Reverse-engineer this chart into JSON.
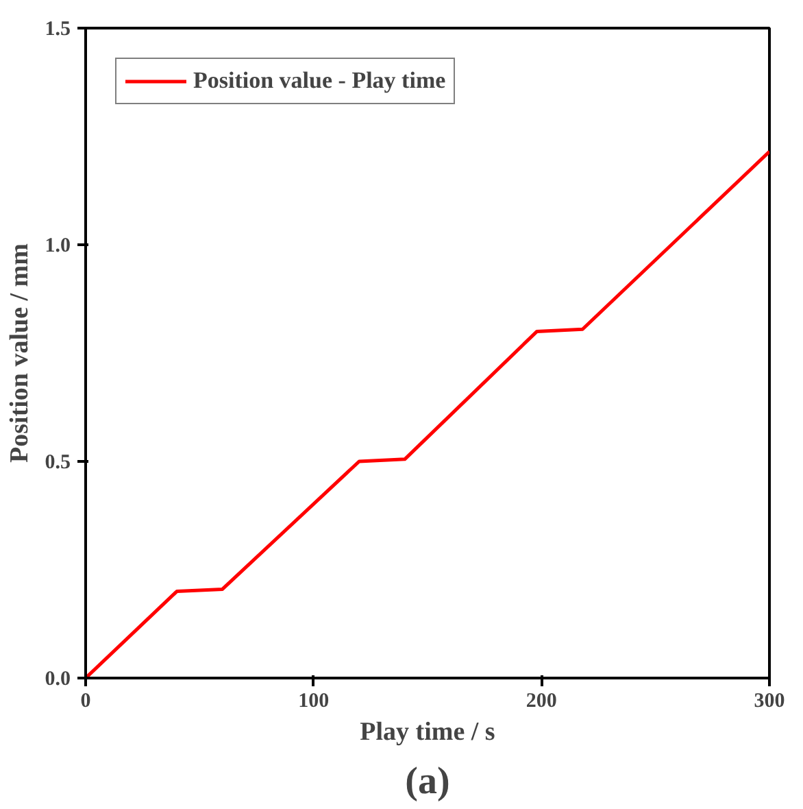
{
  "chart_data": {
    "type": "line",
    "xlabel": "Play time / s",
    "ylabel": "Position value / mm",
    "annotations": [
      "(a)"
    ],
    "x": [
      0,
      40,
      60,
      120,
      140,
      198,
      218,
      300
    ],
    "series": [
      {
        "name": "Position value - Play time",
        "color": "#ff0000",
        "values": [
          0,
          0.2,
          0.205,
          0.5,
          0.505,
          0.8,
          0.805,
          1.215
        ]
      }
    ],
    "xlim": [
      0,
      300
    ],
    "ylim": [
      0,
      1.5
    ],
    "xticks": [
      0,
      100,
      200,
      300
    ],
    "yticks": [
      {
        "value": 0,
        "label": "0.0"
      },
      {
        "value": 0.5,
        "label": "0.5"
      },
      {
        "value": 1.0,
        "label": "1.0"
      },
      {
        "value": 1.5,
        "label": "1.5"
      }
    ],
    "grid": false,
    "legend": "top left",
    "line_style": "solid",
    "marker": "none"
  }
}
